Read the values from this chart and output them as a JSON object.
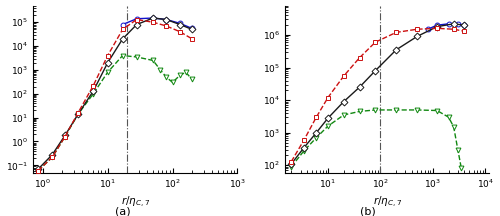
{
  "panel_a": {
    "xlim": [
      0.7,
      1000
    ],
    "ylim": [
      0.05,
      500000.0
    ],
    "vline_x": 20,
    "xlabel": "r/\\eta_{C,7}",
    "label": "(a)",
    "black_x": [
      0.85,
      1.4,
      2.2,
      3.5,
      6.0,
      10,
      17,
      28,
      50,
      80,
      130,
      200
    ],
    "black_y": [
      0.07,
      0.28,
      1.8,
      14,
      130,
      2000,
      20000,
      80000,
      150000,
      130000,
      80000,
      50000
    ],
    "red_x": [
      0.85,
      1.4,
      2.2,
      3.5,
      6.0,
      10,
      17,
      28,
      50,
      80,
      130,
      200
    ],
    "red_y": [
      0.06,
      0.22,
      1.6,
      16,
      220,
      4000,
      50000,
      130000,
      100000,
      70000,
      40000,
      20000
    ],
    "blue_x": [
      17,
      28,
      50,
      80,
      130,
      200
    ],
    "blue_y": [
      80000,
      140000,
      150000,
      130000,
      90000,
      55000
    ],
    "green_x": [
      0.85,
      1.4,
      2.2,
      3.5,
      6.0,
      10,
      17,
      28,
      50,
      65,
      80,
      100,
      130,
      160,
      200
    ],
    "green_y": [
      0.06,
      0.22,
      1.6,
      14,
      100,
      800,
      4000,
      3500,
      2500,
      1000,
      500,
      300,
      600,
      800,
      400
    ]
  },
  "panel_b": {
    "xlim": [
      1.5,
      12000
    ],
    "ylim": [
      60,
      8000000.0
    ],
    "vline_x": 100,
    "xlabel": "r/\\eta_{C,7}",
    "label": "(b)",
    "black_x": [
      2,
      3.5,
      6,
      10,
      20,
      40,
      80,
      200,
      500,
      1200,
      2500,
      4000
    ],
    "black_y": [
      110,
      350,
      1000,
      2800,
      9000,
      25000,
      80000,
      350000,
      900000,
      1800000,
      2200000,
      2000000
    ],
    "red_x": [
      2,
      3.5,
      6,
      10,
      20,
      40,
      80,
      200,
      500,
      1200,
      2500,
      4000
    ],
    "red_y": [
      130,
      600,
      3000,
      12000,
      55000,
      200000,
      600000,
      1200000,
      1500000,
      1600000,
      1500000,
      1300000
    ],
    "blue_x": [
      800,
      1200,
      2000,
      3000,
      4000
    ],
    "blue_y": [
      1500000,
      2000000,
      2200000,
      2200000,
      2000000
    ],
    "green_x": [
      2,
      3.5,
      6,
      10,
      20,
      40,
      80,
      200,
      500,
      1200,
      2000,
      2500,
      3000,
      3500
    ],
    "green_y": [
      90,
      280,
      700,
      1600,
      3500,
      4500,
      5000,
      5000,
      5000,
      4800,
      3000,
      1500,
      300,
      80
    ]
  },
  "black_color": "#1a1a1a",
  "red_color": "#cc1111",
  "blue_color": "#1111cc",
  "green_color": "#118811",
  "marker_black": "D",
  "marker_red": "s",
  "marker_blue": "o",
  "marker_green": "v",
  "linewidth": 1.0,
  "markersize": 3.5,
  "vline_color": "#555555"
}
